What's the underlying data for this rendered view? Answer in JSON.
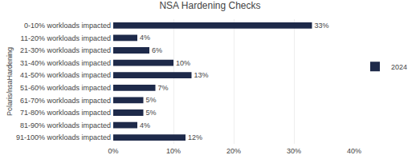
{
  "chart_data": {
    "type": "bar",
    "orientation": "horizontal",
    "title": "NSA Hardening Checks",
    "ylabel": "Polaris/nsaHardening",
    "categories": [
      "0-10% workloads impacted",
      "11-20% workloads impacted",
      "21-30% workloads impacted",
      "31-40% workloads impacted",
      "41-50% workloads impacted",
      "51-60% workloads impacted",
      "61-70% workloads impacted",
      "71-80% workloads impacted",
      "81-90% workloads impacted",
      "91-100% workloads impacted"
    ],
    "series": [
      {
        "name": "2024",
        "color": "#1e2a4a",
        "values": [
          33,
          4,
          6,
          10,
          13,
          7,
          5,
          5,
          4,
          12
        ],
        "value_labels": [
          "33%",
          "4%",
          "6%",
          "10%",
          "13%",
          "7%",
          "5%",
          "5%",
          "4%",
          "12%"
        ]
      }
    ],
    "xlim": [
      0,
      40
    ],
    "xticks": [
      {
        "value": 0,
        "label": "0%"
      },
      {
        "value": 10,
        "label": "10%"
      },
      {
        "value": 20,
        "label": "20%"
      },
      {
        "value": 30,
        "label": "30%"
      },
      {
        "value": 40,
        "label": "40%"
      }
    ],
    "grid": true,
    "data_labels": true,
    "legend": "right"
  }
}
